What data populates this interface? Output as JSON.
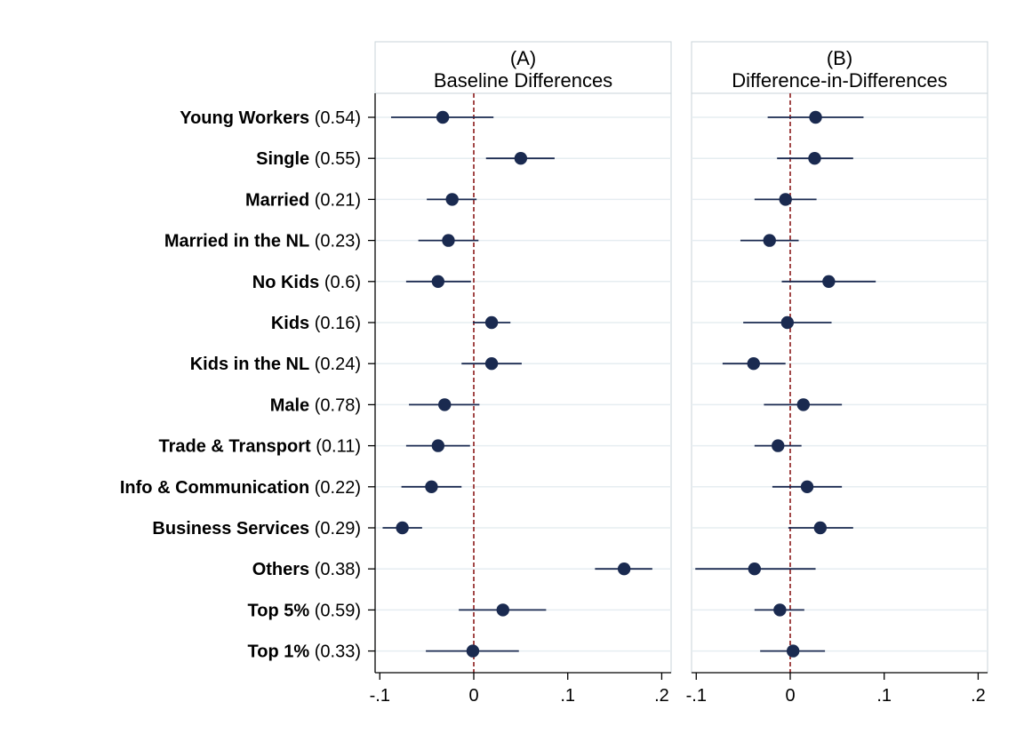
{
  "chart_data": {
    "type": "scatter",
    "x_ticks": [
      "-.1",
      "0",
      ".1",
      ".2"
    ],
    "x_tick_values": [
      -0.1,
      0,
      0.1,
      0.2
    ],
    "xlim": [
      -0.105,
      0.21
    ],
    "reference_line_x": 0,
    "grid": "horizontal",
    "rows": [
      {
        "label": "Young Workers",
        "share": "(0.54)"
      },
      {
        "label": "Single",
        "share": "(0.55)"
      },
      {
        "label": "Married",
        "share": "(0.21)"
      },
      {
        "label": "Married in the NL",
        "share": "(0.23)"
      },
      {
        "label": "No Kids",
        "share": "(0.6)"
      },
      {
        "label": "Kids",
        "share": "(0.16)"
      },
      {
        "label": "Kids in the NL",
        "share": "(0.24)"
      },
      {
        "label": "Male",
        "share": "(0.78)"
      },
      {
        "label": "Trade & Transport",
        "share": "(0.11)"
      },
      {
        "label": "Info & Communication",
        "share": "(0.22)"
      },
      {
        "label": "Business Services",
        "share": "(0.29)"
      },
      {
        "label": "Others",
        "share": "(0.38)"
      },
      {
        "label": "Top 5%",
        "share": "(0.59)"
      },
      {
        "label": "Top 1%",
        "share": "(0.33)"
      }
    ],
    "panels": [
      {
        "letter": "(A)",
        "title": "Baseline Differences",
        "points": [
          {
            "est": -0.033,
            "lo": -0.088,
            "hi": 0.021
          },
          {
            "est": 0.05,
            "lo": 0.013,
            "hi": 0.086
          },
          {
            "est": -0.023,
            "lo": -0.05,
            "hi": 0.003
          },
          {
            "est": -0.027,
            "lo": -0.059,
            "hi": 0.005
          },
          {
            "est": -0.038,
            "lo": -0.072,
            "hi": -0.003
          },
          {
            "est": 0.019,
            "lo": -0.001,
            "hi": 0.039
          },
          {
            "est": 0.019,
            "lo": -0.013,
            "hi": 0.051
          },
          {
            "est": -0.031,
            "lo": -0.069,
            "hi": 0.006
          },
          {
            "est": -0.038,
            "lo": -0.072,
            "hi": -0.004
          },
          {
            "est": -0.045,
            "lo": -0.077,
            "hi": -0.013
          },
          {
            "est": -0.076,
            "lo": -0.097,
            "hi": -0.055
          },
          {
            "est": 0.16,
            "lo": 0.129,
            "hi": 0.19
          },
          {
            "est": 0.031,
            "lo": -0.016,
            "hi": 0.077
          },
          {
            "est": -0.001,
            "lo": -0.051,
            "hi": 0.048
          }
        ]
      },
      {
        "letter": "(B)",
        "title": "Difference-in-Differences",
        "points": [
          {
            "est": 0.027,
            "lo": -0.024,
            "hi": 0.078
          },
          {
            "est": 0.026,
            "lo": -0.014,
            "hi": 0.067
          },
          {
            "est": -0.005,
            "lo": -0.038,
            "hi": 0.028
          },
          {
            "est": -0.022,
            "lo": -0.053,
            "hi": 0.009
          },
          {
            "est": 0.041,
            "lo": -0.009,
            "hi": 0.091
          },
          {
            "est": -0.003,
            "lo": -0.05,
            "hi": 0.044
          },
          {
            "est": -0.039,
            "lo": -0.072,
            "hi": -0.005
          },
          {
            "est": 0.014,
            "lo": -0.028,
            "hi": 0.055
          },
          {
            "est": -0.013,
            "lo": -0.038,
            "hi": 0.012
          },
          {
            "est": 0.018,
            "lo": -0.019,
            "hi": 0.055
          },
          {
            "est": 0.032,
            "lo": -0.002,
            "hi": 0.067
          },
          {
            "est": -0.038,
            "lo": -0.101,
            "hi": 0.027
          },
          {
            "est": -0.011,
            "lo": -0.038,
            "hi": 0.015
          },
          {
            "est": 0.003,
            "lo": -0.032,
            "hi": 0.037
          }
        ]
      }
    ],
    "colors": {
      "marker": "#1a2a50",
      "ci": "#1a2a50",
      "reference_line": "#8b1a1a",
      "grid": "#e6edf1",
      "panel_border": "#c9d3d9",
      "axis": "#000000"
    }
  }
}
